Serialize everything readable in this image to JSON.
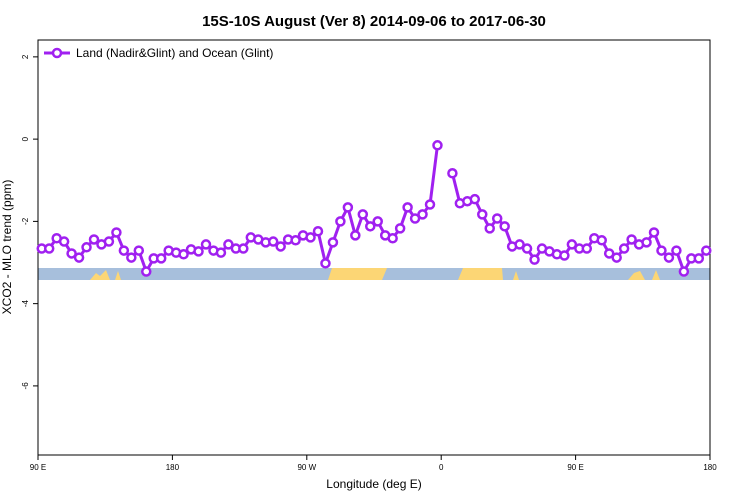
{
  "chart_data": {
    "type": "line",
    "title": "15S-10S August (Ver 8)   2014-09-06 to 2017-06-30",
    "x_label": "Longitude (deg E)",
    "y_label": "XCO2 - MLO trend (ppm)",
    "xlim": [
      90,
      540
    ],
    "xticks": [
      {
        "value": 90,
        "label": "90 E"
      },
      180,
      {
        "value": 270,
        "label": "90 W"
      },
      {
        "value": 360,
        "label": "0"
      },
      {
        "value": 450,
        "label": "90 E"
      },
      {
        "value": 540,
        "label": "180"
      }
    ],
    "ylim": [
      -7.68,
      2.41
    ],
    "yticks": [
      -6,
      -4,
      -2,
      0,
      2
    ],
    "legend_position": "top-left",
    "x": [
      92.5,
      97.5,
      102.5,
      107.5,
      112.5,
      117.5,
      122.5,
      127.5,
      132.5,
      137.5,
      142.5,
      147.5,
      152.5,
      157.5,
      162.5,
      167.5,
      172.5,
      177.5,
      182.5,
      187.5,
      192.5,
      197.5,
      202.5,
      207.5,
      212.5,
      217.5,
      222.5,
      227.5,
      232.5,
      237.5,
      242.5,
      247.5,
      252.5,
      257.5,
      262.5,
      267.5,
      272.5,
      277.5,
      282.5,
      287.5,
      292.5,
      297.5,
      302.5,
      307.5,
      312.5,
      317.5,
      322.5,
      327.5,
      332.5,
      337.5,
      342.5,
      347.5,
      352.5,
      357.5,
      362.5,
      367.5,
      372.5,
      377.5,
      382.5,
      387.5,
      392.5,
      397.5,
      402.5,
      407.5,
      412.5,
      417.5,
      422.5,
      427.5,
      432.5,
      437.5,
      442.5,
      447.5,
      452.5,
      457.5,
      462.5,
      467.5,
      472.5,
      477.5,
      482.5,
      487.5,
      492.5,
      497.5,
      502.5,
      507.5,
      512.5,
      517.5,
      522.5,
      527.5,
      532.5,
      537.5
    ],
    "series": [
      {
        "name": "Land (Nadir&Glint) and Ocean (Glint)",
        "color": "#a020f0",
        "values": [
          -2.66,
          -2.66,
          -2.41,
          -2.49,
          -2.78,
          -2.88,
          -2.63,
          -2.44,
          -2.56,
          -2.49,
          -2.27,
          -2.71,
          -2.88,
          -2.71,
          -3.22,
          -2.9,
          -2.9,
          -2.71,
          -2.76,
          -2.8,
          -2.68,
          -2.73,
          -2.56,
          -2.71,
          -2.76,
          -2.56,
          -2.66,
          -2.66,
          -2.39,
          -2.44,
          -2.51,
          -2.49,
          -2.61,
          -2.44,
          -2.46,
          -2.34,
          -2.39,
          -2.24,
          -3.02,
          -2.51,
          -2.0,
          -1.66,
          -2.34,
          -1.83,
          -2.12,
          -2.0,
          -2.34,
          -2.41,
          -2.17,
          -1.66,
          -1.93,
          -1.83,
          -1.59,
          -0.15,
          null,
          -0.83,
          -1.56,
          -1.51,
          -1.46,
          -1.83,
          -2.17,
          -1.93,
          -2.12,
          -2.61,
          -2.56,
          -2.66,
          -2.93,
          -2.66,
          -2.73,
          -2.8,
          -2.83,
          -2.56,
          -2.66,
          -2.66,
          -2.41,
          -2.46,
          -2.78,
          -2.88,
          -2.66,
          -2.44,
          -2.56,
          -2.51,
          -2.27,
          -2.71,
          -2.88,
          -2.71,
          -3.22,
          -2.9,
          -2.9,
          -2.71
        ]
      }
    ]
  }
}
